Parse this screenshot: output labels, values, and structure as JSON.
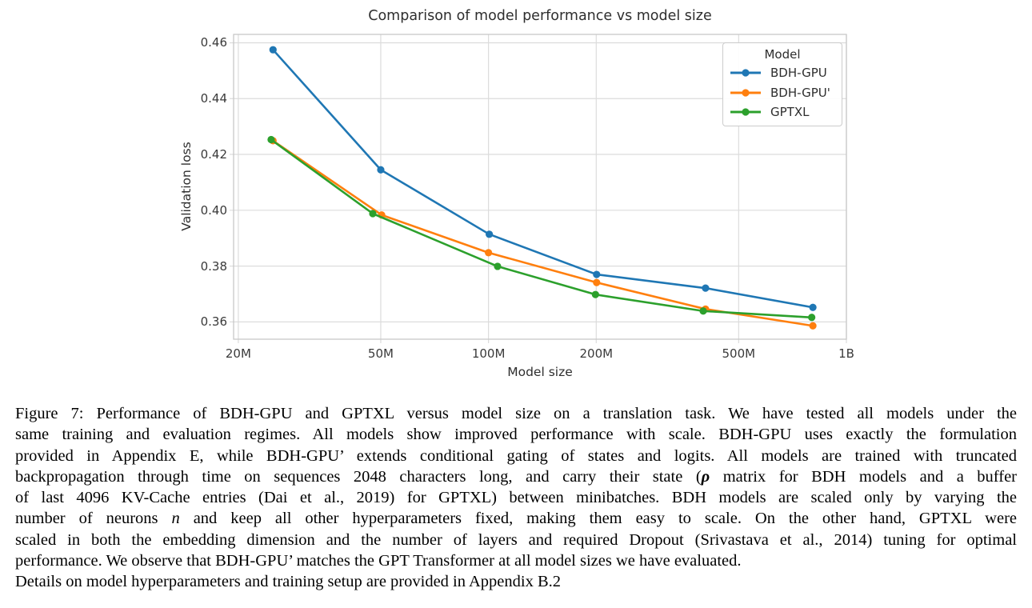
{
  "page": {
    "background": "#ffffff"
  },
  "chart_data": {
    "type": "line",
    "title": "Comparison of model performance vs model size",
    "xlabel": "Model size",
    "ylabel": "Validation loss",
    "x_scale": "log",
    "x_unit": "parameters (millions)",
    "x_ticks_millions": [
      20,
      50,
      100,
      200,
      500,
      1000
    ],
    "x_tick_labels": [
      "20M",
      "50M",
      "100M",
      "200M",
      "500M",
      "1B"
    ],
    "y_ticks": [
      0.46,
      0.44,
      0.42,
      0.4,
      0.38,
      0.36
    ],
    "y_tick_labels": [
      "0.46",
      "0.44",
      "0.42",
      "0.40",
      "0.38",
      "0.36"
    ],
    "xlim_millions": [
      19.4,
      1000
    ],
    "ylim": [
      0.3538,
      0.463
    ],
    "grid": true,
    "legend_title": "Model",
    "legend_position": "upper right",
    "series": [
      {
        "name": "BDH-GPU",
        "color": "#1f77b4",
        "x_millions": [
          25,
          50,
          100.5,
          200.5,
          404,
          806
        ],
        "y": [
          0.4575,
          0.4145,
          0.3914,
          0.377,
          0.3721,
          0.3652
        ]
      },
      {
        "name": "BDH-GPU'",
        "color": "#ff7f0e",
        "x_millions": [
          25,
          50.3,
          100,
          200.5,
          404,
          806
        ],
        "y": [
          0.4249,
          0.3983,
          0.3848,
          0.3741,
          0.3646,
          0.3586
        ]
      },
      {
        "name": "GPTXL",
        "color": "#2ca02c",
        "x_millions": [
          24.7,
          47.5,
          106,
          199,
          398,
          800
        ],
        "y": [
          0.4253,
          0.3988,
          0.3799,
          0.3698,
          0.3639,
          0.3616
        ]
      }
    ]
  },
  "caption": {
    "lines": [
      {
        "justify": true,
        "segments": [
          {
            "text": "Figure 7: Performance of BDH-GPU and GPTXL versus model size on a translation task. We have tested all models under the"
          }
        ]
      },
      {
        "justify": true,
        "segments": [
          {
            "text": "same training and evaluation regimes. All models show improved performance with scale. BDH-GPU uses exactly the formulation"
          }
        ]
      },
      {
        "justify": true,
        "segments": [
          {
            "text": "provided in Appendix E, while BDH-GPU’ extends conditional gating of states and logits. All models are trained with truncated"
          }
        ]
      },
      {
        "justify": true,
        "segments": [
          {
            "text": "backpropagation through time on sequences 2048 characters long, and carry their state ("
          },
          {
            "text": "ρ",
            "style": "bold-italic"
          },
          {
            "text": " matrix for BDH models and a buffer"
          }
        ]
      },
      {
        "justify": true,
        "segments": [
          {
            "text": "of last 4096 KV-Cache entries (Dai et al., 2019) for GPTXL) between minibatches. BDH models are scaled only by varying the"
          }
        ]
      },
      {
        "justify": true,
        "segments": [
          {
            "text": "number of neurons "
          },
          {
            "text": "n",
            "style": "italic"
          },
          {
            "text": " and keep all other hyperparameters fixed, making them easy to scale. On the other hand, GPTXL were"
          }
        ]
      },
      {
        "justify": true,
        "segments": [
          {
            "text": "scaled in both the embedding dimension and the number of layers and required Dropout (Srivastava et al., 2014) tuning for optimal"
          }
        ]
      },
      {
        "justify": false,
        "segments": [
          {
            "text": "performance. We observe that BDH-GPU’ matches the GPT Transformer at all model sizes we have evaluated."
          }
        ]
      },
      {
        "justify": false,
        "segments": [
          {
            "text": "Details on model hyperparameters and training setup are provided in Appendix B.2"
          }
        ]
      }
    ]
  }
}
